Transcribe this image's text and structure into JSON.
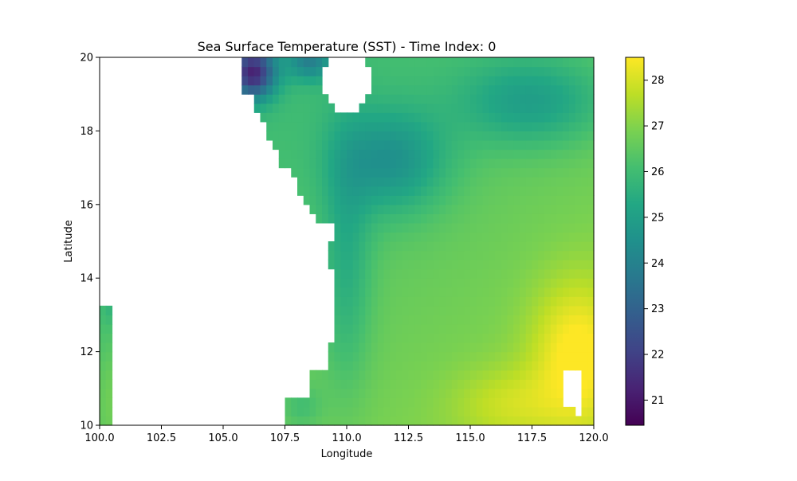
{
  "chart_data": {
    "type": "heatmap",
    "title": "Sea Surface Temperature (SST) - Time Index: 0",
    "xlabel": "Longitude",
    "ylabel": "Latitude",
    "xlim": [
      100.0,
      120.0
    ],
    "ylim": [
      10,
      20
    ],
    "xticks": [
      100.0,
      102.5,
      105.0,
      107.5,
      110.0,
      112.5,
      115.0,
      117.5,
      120.0
    ],
    "xtick_labels": [
      "100.0",
      "102.5",
      "105.0",
      "107.5",
      "110.0",
      "112.5",
      "115.0",
      "117.5",
      "120.0"
    ],
    "yticks": [
      10,
      12,
      14,
      16,
      18,
      20
    ],
    "ytick_labels": [
      "10",
      "12",
      "14",
      "16",
      "18",
      "20"
    ],
    "colormap": "viridis",
    "colorbar": {
      "range": [
        20.45,
        28.5
      ],
      "ticks": [
        21,
        22,
        23,
        24,
        25,
        26,
        27,
        28
      ],
      "tick_labels": [
        "21",
        "22",
        "23",
        "24",
        "25",
        "26",
        "27",
        "28"
      ]
    },
    "grid": false,
    "grid_resolution": 0.25,
    "land_mask": "white (no data) over coastal Vietnam, Cambodia/Thailand, and Hainan Island",
    "field_description": {
      "min_value": 20.5,
      "min_location": "north-west corner near Gulf of Tonkin (~106E, 19.5N)",
      "max_value": 28.3,
      "max_location": "south-east (~118-120E, 10-13N)",
      "warm_pool_gulf_of_thailand": 27.2,
      "central_basin_cool_tongue": 23.6,
      "north_east_basin": 24.0
    }
  }
}
